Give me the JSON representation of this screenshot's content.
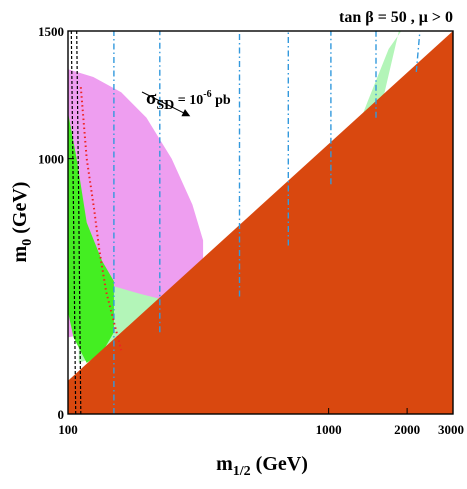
{
  "chart_data": {
    "type": "area",
    "title": "tan β = 50 ,  μ > 0",
    "xlabel": "m",
    "xlabel_sub": "1/2",
    "xlabel_unit": " (GeV)",
    "ylabel": "m",
    "ylabel_sub": "0",
    "ylabel_unit": " (GeV)",
    "xscale": "log",
    "xlim": [
      100,
      3000
    ],
    "ylim": [
      0,
      1500
    ],
    "x_ticks": [
      100,
      1000,
      2000,
      3000
    ],
    "x_tick_labels": [
      "100",
      "1000",
      "2000",
      "3000"
    ],
    "y_ticks": [
      0,
      1000,
      1500
    ],
    "y_tick_labels": [
      "0",
      "1000",
      "1500"
    ],
    "grid": false,
    "annotation": {
      "text_main": "σ",
      "text_sub": "SD",
      "text_eq": " = 10",
      "text_sup": "-6",
      "text_unit": " pb",
      "arrow_to": {
        "x": 290,
        "y": 1170
      }
    },
    "colors": {
      "excluded": "#d9480f",
      "pink": "#ee9ef0",
      "light_green": "#b3f5b8",
      "green": "#44ee22",
      "blue_contour": "#3399dd",
      "red_dotted": "#ee2222",
      "black_dashed": "#000000"
    },
    "regions": [
      {
        "name": "",
        "kind": "excluded",
        "x": [
          100,
          100,
          3000,
          3000
        ],
        "y": [
          0,
          130,
          1500,
          0
        ]
      },
      {
        "name": "",
        "kind": "pink",
        "x": [
          100,
          125,
          160,
          200,
          250,
          300,
          330,
          330,
          300,
          250,
          200,
          160,
          125,
          100
        ],
        "y": [
          1350,
          1320,
          1260,
          1160,
          1000,
          820,
          680,
          560,
          520,
          470,
          420,
          380,
          320,
          300
        ]
      },
      {
        "name": "",
        "kind": "light_green",
        "x": [
          110,
          150,
          190,
          250,
          330,
          360,
          360,
          300,
          220,
          150,
          110
        ],
        "y": [
          560,
          500,
          470,
          440,
          420,
          460,
          390,
          370,
          330,
          250,
          200
        ]
      },
      {
        "name": "",
        "kind": "light_green",
        "x": [
          360,
          500,
          700,
          900,
          1150,
          1420,
          1700,
          1900,
          1860,
          1640,
          1400,
          1150,
          900,
          700,
          520,
          400
        ],
        "y": [
          460,
          530,
          650,
          800,
          990,
          1230,
          1430,
          1500,
          1500,
          1260,
          1030,
          860,
          700,
          590,
          490,
          430
        ]
      },
      {
        "name": "",
        "kind": "light_green",
        "x": [
          1420,
          1700,
          2100,
          2500,
          2900,
          3000,
          3000,
          2600,
          2200,
          1800,
          1460
        ],
        "y": [
          1000,
          1100,
          1210,
          1350,
          1480,
          1500,
          1450,
          1380,
          1290,
          1170,
          1040
        ]
      },
      {
        "name": "",
        "kind": "green",
        "x": [
          100,
          108,
          118,
          135,
          150,
          150,
          135,
          118,
          105,
          100
        ],
        "y": [
          1180,
          1000,
          750,
          600,
          520,
          320,
          240,
          200,
          300,
          400
        ]
      }
    ],
    "series": [
      {
        "name": "",
        "kind": "blue_contour",
        "x": [
          150,
          150
        ],
        "y": [
          0,
          1500
        ]
      },
      {
        "name": "",
        "kind": "blue_contour",
        "x": [
          225,
          225
        ],
        "y": [
          320,
          1500
        ]
      },
      {
        "name": "",
        "kind": "blue_contour",
        "x": [
          455,
          455
        ],
        "y": [
          460,
          1500
        ]
      },
      {
        "name": "",
        "kind": "blue_contour",
        "x": [
          700,
          700
        ],
        "y": [
          660,
          1500
        ]
      },
      {
        "name": "",
        "kind": "blue_contour",
        "x": [
          1020,
          1020
        ],
        "y": [
          900,
          1500
        ]
      },
      {
        "name": "",
        "kind": "blue_contour",
        "x": [
          1520,
          1520
        ],
        "y": [
          1160,
          1500
        ]
      },
      {
        "name": "",
        "kind": "blue_contour",
        "x": [
          2170,
          2240
        ],
        "y": [
          1340,
          1500
        ]
      },
      {
        "name": "",
        "kind": "red_dotted",
        "x": [
          112,
          118,
          126,
          132,
          140,
          150,
          160
        ],
        "y": [
          1280,
          1000,
          800,
          640,
          480,
          360,
          250
        ]
      },
      {
        "name": "",
        "kind": "black_dashed",
        "x": [
          103,
          105,
          107
        ],
        "y": [
          1500,
          800,
          0
        ]
      },
      {
        "name": "",
        "kind": "black_dashed",
        "x": [
          108,
          110,
          112
        ],
        "y": [
          1500,
          800,
          0
        ]
      }
    ]
  }
}
